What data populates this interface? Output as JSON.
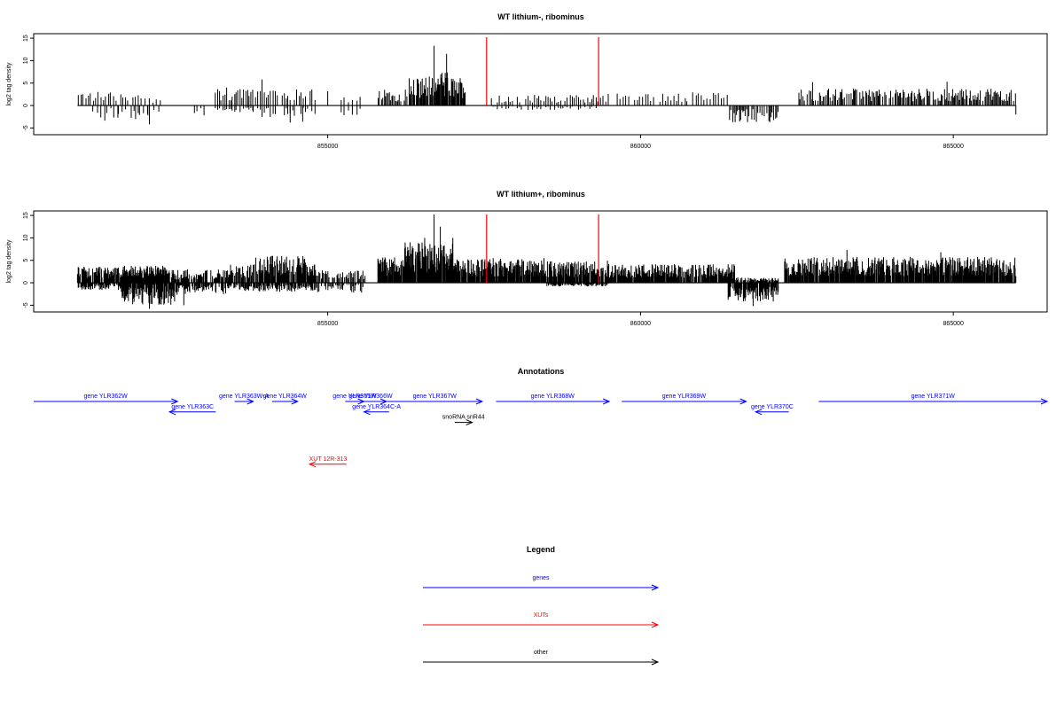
{
  "chart_data": [
    {
      "type": "bar",
      "title": "WT lithium-, ribominus",
      "xlabel": "",
      "ylabel": "log2 tag density",
      "xlim": [
        850300,
        866500
      ],
      "ylim": [
        -6.5,
        16
      ],
      "yticks": [
        -5,
        0,
        5,
        10,
        15
      ],
      "xticks": [
        855000,
        860000,
        865000
      ],
      "xtick_labels": [
        "855000",
        "860000",
        "865000"
      ],
      "bar_color": "#000000",
      "profile": [
        {
          "from": 851000,
          "to": 852000,
          "top": 3.2,
          "bottom": 0,
          "step": 40
        },
        {
          "from": 852000,
          "to": 852300,
          "top": 2.5,
          "bottom": 0,
          "step": 60
        },
        {
          "from": 851200,
          "to": 852300,
          "top": 0,
          "bottom": -2.2,
          "step": 110
        },
        {
          "from": 851350,
          "to": 852250,
          "top": 0,
          "bottom": -3.6,
          "step": 70
        },
        {
          "from": 852800,
          "to": 853000,
          "top": 0,
          "bottom": -2.2,
          "step": 50
        },
        {
          "from": 853200,
          "to": 853800,
          "top": 4.2,
          "bottom": -1.5,
          "step": 30
        },
        {
          "from": 853800,
          "to": 854800,
          "top": 3.8,
          "bottom": -2.6,
          "step": 35
        },
        {
          "from": 855200,
          "to": 855500,
          "top": 2.0,
          "bottom": -2.4,
          "step": 60
        },
        {
          "from": 855800,
          "to": 856300,
          "top": 3.6,
          "bottom": 0,
          "step": 20
        },
        {
          "from": 856300,
          "to": 857200,
          "top": 6.5,
          "bottom": 0,
          "step": 14
        },
        {
          "from": 856700,
          "to": 856900,
          "top": 10.5,
          "bottom": 0,
          "step": 25
        },
        {
          "from": 857600,
          "to": 859300,
          "top": 2.4,
          "bottom": -1.0,
          "step": 35
        },
        {
          "from": 859300,
          "to": 861400,
          "top": 3.0,
          "bottom": 0,
          "step": 45
        },
        {
          "from": 861400,
          "to": 862200,
          "top": 0,
          "bottom": -3.8,
          "step": 18
        },
        {
          "from": 862500,
          "to": 863200,
          "top": 3.8,
          "bottom": 0,
          "step": 22
        },
        {
          "from": 863200,
          "to": 866000,
          "top": 3.8,
          "bottom": 0,
          "step": 18
        }
      ],
      "spikes": [
        {
          "x": 852150,
          "y": -4.2
        },
        {
          "x": 853950,
          "y": 5.8
        },
        {
          "x": 854400,
          "y": -3.8
        },
        {
          "x": 854600,
          "y": -3.6
        },
        {
          "x": 855000,
          "y": 3.2
        },
        {
          "x": 856700,
          "y": 13.3
        },
        {
          "x": 856900,
          "y": 11.5
        },
        {
          "x": 862750,
          "y": 5.2
        },
        {
          "x": 864900,
          "y": 5.3
        },
        {
          "x": 866000,
          "y": -2.0
        }
      ],
      "markers": [
        {
          "x": 857540,
          "color": "#ff0000"
        },
        {
          "x": 859330,
          "color": "#ff0000"
        }
      ]
    },
    {
      "type": "bar",
      "title": "WT lithium+, ribominus",
      "xlabel": "",
      "ylabel": "log2 tag density",
      "xlim": [
        850300,
        866500
      ],
      "ylim": [
        -6.5,
        16
      ],
      "yticks": [
        -5,
        0,
        5,
        10,
        15
      ],
      "xticks": [
        855000,
        860000,
        865000
      ],
      "xtick_labels": [
        "855000",
        "860000",
        "865000"
      ],
      "bar_color": "#000000",
      "profile": [
        {
          "from": 851000,
          "to": 852400,
          "top": 3.8,
          "bottom": -1.6,
          "step": 10
        },
        {
          "from": 851700,
          "to": 852600,
          "top": 3.0,
          "bottom": -5.0,
          "step": 10
        },
        {
          "from": 852600,
          "to": 853400,
          "top": 3.0,
          "bottom": -2.6,
          "step": 12
        },
        {
          "from": 853400,
          "to": 853900,
          "top": 4.2,
          "bottom": -1.8,
          "step": 14
        },
        {
          "from": 853900,
          "to": 854800,
          "top": 6.0,
          "bottom": -2.0,
          "step": 10
        },
        {
          "from": 854800,
          "to": 855600,
          "top": 3.0,
          "bottom": -2.2,
          "step": 18
        },
        {
          "from": 855800,
          "to": 856200,
          "top": 6.0,
          "bottom": 0,
          "step": 7
        },
        {
          "from": 856200,
          "to": 857000,
          "top": 9.0,
          "bottom": 0,
          "step": 6
        },
        {
          "from": 857000,
          "to": 858500,
          "top": 5.5,
          "bottom": 0,
          "step": 8
        },
        {
          "from": 858500,
          "to": 859500,
          "top": 5.0,
          "bottom": -0.8,
          "step": 9
        },
        {
          "from": 859500,
          "to": 861500,
          "top": 4.2,
          "bottom": 0,
          "step": 10
        },
        {
          "from": 861400,
          "to": 862200,
          "top": 1.2,
          "bottom": -4.2,
          "step": 10
        },
        {
          "from": 862300,
          "to": 863500,
          "top": 5.8,
          "bottom": 0,
          "step": 8
        },
        {
          "from": 863500,
          "to": 866000,
          "top": 5.8,
          "bottom": 0,
          "step": 8
        }
      ],
      "spikes": [
        {
          "x": 852150,
          "y": -5.8
        },
        {
          "x": 852700,
          "y": -5.0
        },
        {
          "x": 853850,
          "y": 5.6
        },
        {
          "x": 856550,
          "y": 10.0
        },
        {
          "x": 856700,
          "y": 15.2
        },
        {
          "x": 856800,
          "y": 12.5
        },
        {
          "x": 857000,
          "y": 10.0
        },
        {
          "x": 861800,
          "y": -5.2
        },
        {
          "x": 863300,
          "y": 7.3
        },
        {
          "x": 864800,
          "y": 6.8
        }
      ],
      "markers": [
        {
          "x": 857540,
          "color": "#ff0000"
        },
        {
          "x": 859330,
          "color": "#ff0000"
        }
      ]
    }
  ],
  "annotations": {
    "title": "Annotations",
    "xlim": [
      850300,
      866500
    ],
    "items": [
      {
        "label": "gene YLR362W",
        "start": 850300,
        "end": 852600,
        "dir": "right",
        "row": 0,
        "color": "#0000ff"
      },
      {
        "label": "gene YLR363C",
        "start": 852470,
        "end": 853210,
        "dir": "left",
        "row": 1,
        "color": "#0000ff"
      },
      {
        "label": "gene YLR363W-A",
        "start": 853510,
        "end": 853810,
        "dir": "right",
        "row": 0,
        "color": "#0000ff"
      },
      {
        "label": "gene YLR364W",
        "start": 854110,
        "end": 854520,
        "dir": "right",
        "row": 0,
        "color": "#0000ff"
      },
      {
        "label": "gene YLR365W",
        "start": 855280,
        "end": 855580,
        "dir": "right",
        "row": 0,
        "color": "#0000ff"
      },
      {
        "label": "gene YLR366W",
        "start": 855430,
        "end": 855940,
        "dir": "right",
        "row": 0,
        "color": "#0000ff"
      },
      {
        "label": "gene YLR364C-A",
        "start": 855580,
        "end": 855980,
        "dir": "left",
        "row": 1,
        "color": "#0000ff"
      },
      {
        "label": "gene YLR367W",
        "start": 855950,
        "end": 857470,
        "dir": "right",
        "row": 0,
        "color": "#0000ff"
      },
      {
        "label": "snoRNA snR44",
        "start": 857030,
        "end": 857310,
        "dir": "right",
        "row": 2,
        "color": "#000000"
      },
      {
        "label": "gene YLR368W",
        "start": 857690,
        "end": 859500,
        "dir": "right",
        "row": 0,
        "color": "#0000ff"
      },
      {
        "label": "gene YLR369W",
        "start": 859700,
        "end": 861690,
        "dir": "right",
        "row": 0,
        "color": "#0000ff"
      },
      {
        "label": "gene YLR370C",
        "start": 861840,
        "end": 862370,
        "dir": "left",
        "row": 1,
        "color": "#0000ff"
      },
      {
        "label": "gene YLR371W",
        "start": 862850,
        "end": 866500,
        "dir": "right",
        "row": 0,
        "color": "#0000ff"
      },
      {
        "label": "XUT 12R-313",
        "start": 854710,
        "end": 855300,
        "dir": "left",
        "row": 6,
        "color": "#ff0000"
      }
    ]
  },
  "legend": {
    "title": "Legend",
    "items": [
      {
        "label": "genes",
        "color": "#0000ff"
      },
      {
        "label": "XUTs",
        "color": "#ff0000"
      },
      {
        "label": "other",
        "color": "#000000"
      }
    ]
  }
}
